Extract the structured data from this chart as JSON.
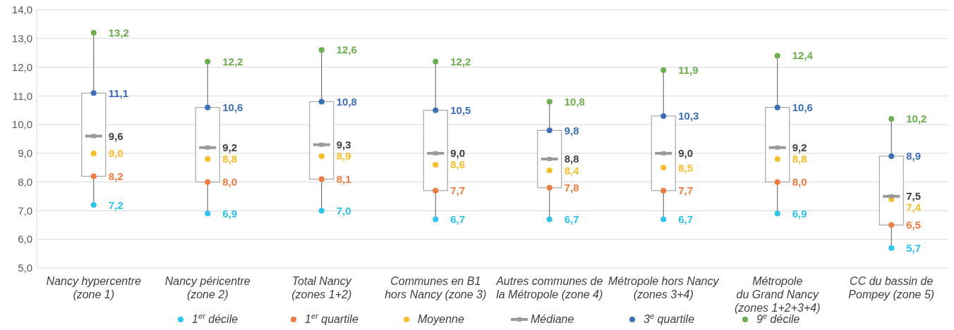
{
  "chart_data": {
    "type": "box",
    "categories": [
      "Nancy hypercentre\n(zone 1)",
      "Nancy péricentre\n(zone 2)",
      "Total Nancy\n(zones 1+2)",
      "Communes en B1\nhors Nancy (zone 3)",
      "Autres communes de\nla Métropole (zone 4)",
      "Métropole hors Nancy\n(zones 3+4)",
      "Métropole\ndu Grand Nancy\n(zones 1+2+3+4)",
      "CC du bassin de\nPompey (zone 5)"
    ],
    "boxes": [
      {
        "low": 7.2,
        "q1": 8.2,
        "median": 9.6,
        "q3": 11.1,
        "high": 13.2
      },
      {
        "low": 6.9,
        "q1": 8.0,
        "median": 9.2,
        "q3": 10.6,
        "high": 12.2
      },
      {
        "low": 7.0,
        "q1": 8.1,
        "median": 9.3,
        "q3": 10.8,
        "high": 12.6
      },
      {
        "low": 6.7,
        "q1": 7.7,
        "median": 9.0,
        "q3": 10.5,
        "high": 12.2
      },
      {
        "low": 6.7,
        "q1": 7.8,
        "median": 8.8,
        "q3": 9.8,
        "high": 10.8
      },
      {
        "low": 6.7,
        "q1": 7.7,
        "median": 9.0,
        "q3": 10.3,
        "high": 11.9
      },
      {
        "low": 6.9,
        "q1": 8.0,
        "median": 9.2,
        "q3": 10.6,
        "high": 12.4
      },
      {
        "low": 5.7,
        "q1": 6.5,
        "median": 7.5,
        "q3": 8.9,
        "high": 10.2
      }
    ],
    "series": [
      {
        "name": "1$^{er}$ décile",
        "type": "scatter",
        "color": "#29c4f0",
        "values": [
          7.2,
          6.9,
          7.0,
          6.7,
          6.7,
          6.7,
          6.9,
          5.7
        ],
        "value_labels": [
          "7,2",
          "6,9",
          "7,0",
          "6,7",
          "6,7",
          "6,7",
          "6,9",
          "5,7"
        ]
      },
      {
        "name": "1$^{er}$ quartile",
        "type": "scatter",
        "color": "#f07b3c",
        "values": [
          8.2,
          8.0,
          8.1,
          7.7,
          7.8,
          7.7,
          8.0,
          6.5
        ],
        "value_labels": [
          "8,2",
          "8,0",
          "8,1",
          "7,7",
          "7,8",
          "7,7",
          "8,0",
          "6,5"
        ]
      },
      {
        "name": "Moyenne",
        "type": "scatter",
        "color": "#fbbd26",
        "values": [
          9.0,
          8.8,
          8.9,
          8.6,
          8.4,
          8.5,
          8.8,
          7.4
        ],
        "value_labels": [
          "9,0",
          "8,8",
          "8,9",
          "8,6",
          "8,4",
          "8,5",
          "8,8",
          "7,4"
        ]
      },
      {
        "name": "Médiane",
        "type": "scatter",
        "marker": "square",
        "color": "#9a9a9a",
        "values": [
          9.6,
          9.2,
          9.3,
          9.0,
          8.8,
          9.0,
          9.2,
          7.5
        ],
        "value_labels": [
          "9,6",
          "9,2",
          "9,3",
          "9,0",
          "8,8",
          "9,0",
          "9,2",
          "7,5"
        ]
      },
      {
        "name": "3$^{e}$ quartile",
        "type": "scatter",
        "color": "#3b6fbd",
        "values": [
          11.1,
          10.6,
          10.8,
          10.5,
          9.8,
          10.3,
          10.6,
          8.9
        ],
        "value_labels": [
          "11,1",
          "10,6",
          "10,8",
          "10,5",
          "9,8",
          "10,3",
          "10,6",
          "8,9"
        ]
      },
      {
        "name": "9$^{e}$ décile",
        "type": "scatter",
        "color": "#6ab04c",
        "values": [
          13.2,
          12.2,
          12.6,
          12.2,
          10.8,
          11.9,
          12.4,
          10.2
        ],
        "value_labels": [
          "13,2",
          "12,2",
          "12,6",
          "12,2",
          "10,8",
          "11,9",
          "12,4",
          "10,2"
        ]
      }
    ],
    "ylim": [
      5,
      14
    ],
    "yticks": [
      {
        "value": 5,
        "label": "5,0"
      },
      {
        "value": 6,
        "label": "6,0"
      },
      {
        "value": 7,
        "label": "7,0"
      },
      {
        "value": 8,
        "label": "8,0"
      },
      {
        "value": 9,
        "label": "9,0"
      },
      {
        "value": 10,
        "label": "10,0"
      },
      {
        "value": 11,
        "label": "11,0"
      },
      {
        "value": 12,
        "label": "12,0"
      },
      {
        "value": 13,
        "label": "13,0"
      },
      {
        "value": 14,
        "label": "14,0"
      }
    ],
    "grid": true,
    "legend": "bottom",
    "data_labels": true
  }
}
